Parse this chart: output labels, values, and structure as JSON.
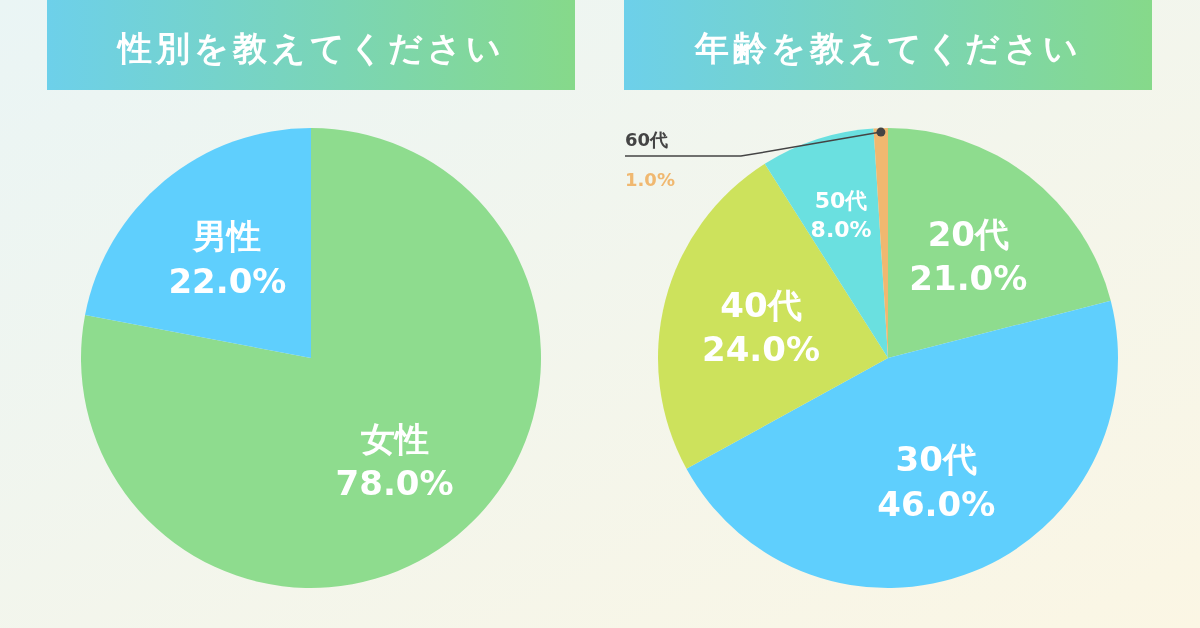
{
  "chart_data": [
    {
      "type": "pie",
      "title": "性別を教えてください",
      "categories": [
        "女性",
        "男性"
      ],
      "values": [
        78.0,
        22.0
      ],
      "value_labels": [
        "78.0%",
        "22.0%"
      ],
      "colors": [
        "#8edc8e",
        "#5fcffd"
      ]
    },
    {
      "type": "pie",
      "title": "年齢を教えてください",
      "categories": [
        "20代",
        "30代",
        "40代",
        "50代",
        "60代"
      ],
      "values": [
        21.0,
        46.0,
        24.0,
        8.0,
        1.0
      ],
      "value_labels": [
        "21.0%",
        "46.0%",
        "24.0%",
        "8.0%",
        "1.0%"
      ],
      "colors": [
        "#8edc8e",
        "#5fcffd",
        "#cde25c",
        "#6ae0e0",
        "#f0b870"
      ]
    }
  ]
}
